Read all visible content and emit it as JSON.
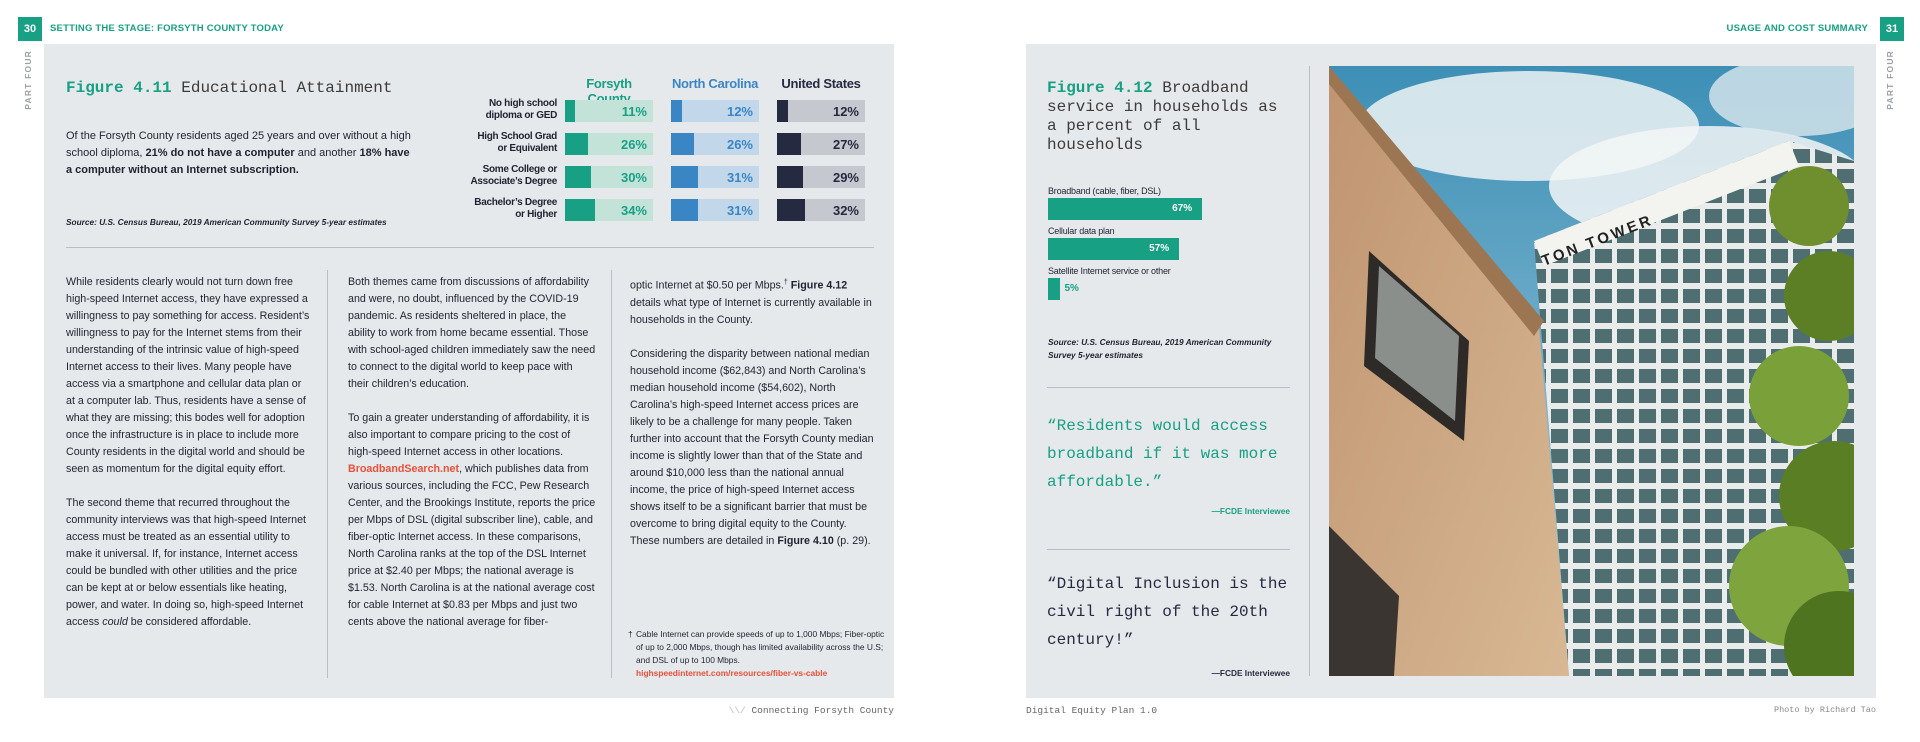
{
  "left_page": {
    "page_number": "30",
    "header": "SETTING THE STAGE: FORSYTH COUNTY TODAY",
    "side_label": "PART FOUR",
    "figure": {
      "number": "Figure 4.11",
      "title": "Educational Attainment",
      "description_parts": [
        "Of the Forsyth County residents aged 25 years and over without a high school diploma, ",
        "21% do not have a computer",
        " and another ",
        "18% have a computer without an Internet subscription."
      ],
      "source": "Source: U.S. Census Bureau, 2019 American Community Survey 5-year estimates"
    },
    "columns_text": {
      "c1": [
        "While residents clearly would not turn down free high-speed Internet access, they have expressed a willingness to pay something for access. Resident’s willingness to pay for the Internet stems from their understanding of the intrinsic value of high-speed Internet access to their lives. Many people have access via a smartphone and cellular data plan or at a computer lab. Thus, residents have a sense of what they are missing; this bodes well for adoption once the infrastructure is in place to include more County residents in the digital world and should be seen as momentum for the digital equity effort.",
        "The second theme that recurred throughout the community interviews was that high-speed Internet access must be treated as an essential utility to make it universal. If, for instance, Internet access could be bundled with other utilities and the price can be kept at or below essentials like heating, power, and water. In doing so, high-speed Internet access",
        "could",
        " be considered affordable."
      ],
      "c2": [
        "Both themes came from discussions of affordability and were, no doubt, influenced by the COVID-19 pandemic. As residents sheltered in place, the ability to work from home became essential. Those with school-aged children immediately saw the need to connect to the digital world to keep pace with their children’s education.",
        "To gain a greater understanding of affordability, it is also important to compare pricing to the cost of high-speed Internet access in other locations. ",
        "BroadbandSearch.net",
        ", which publishes data from various sources, including the FCC, Pew Research Center, and the Brookings Institute, reports the price per Mbps of DSL (digital subscriber line), cable, and fiber-optic Internet access. In these comparisons, North Carolina ranks at the top of the DSL Internet price at $2.40 per Mbps; the national average is $1.53. North Carolina is at the national average cost for cable Internet at $0.83 per Mbps and just two cents above the national average for fiber-"
      ],
      "c3": [
        "optic Internet at $0.50 per Mbps.",
        "†",
        " ",
        "Figure 4.12",
        " details what type of Internet is currently available in households in the County.",
        "Considering the disparity between national median household income ($62,843) and North Carolina’s median household income ($54,602), North Carolina’s high-speed Internet access prices are likely to be a challenge for many people. Taken further into account that the Forsyth County median income is slightly lower than that of the State and around $10,000 less than the national annual income, the price of high-speed Internet access shows itself to be a significant barrier that must be overcome to bring digital equity to the County. These numbers are detailed in ",
        "Figure 4.10",
        " (p. 29)."
      ],
      "footnote": {
        "mark": "†",
        "text": "Cable Internet can provide speeds of up to 1,000 Mbps; Fiber-optic of up to 2,000 Mbps, though has limited availability across the U.S; and DSL of up to 100 Mbps.",
        "link": "highspeedinternet.com/resources/fiber-vs-cable"
      }
    },
    "footer": "Connecting Forsyth County"
  },
  "right_page": {
    "page_number": "31",
    "header": "USAGE AND COST SUMMARY",
    "side_label": "PART FOUR",
    "figure": {
      "number": "Figure 4.12",
      "title": "Broadband service in households as a percent of all households",
      "source": "Source: U.S. Census Bureau, 2019 American Community Survey 5-year estimates"
    },
    "quotes": [
      {
        "text": "“Residents would access broadband if it was more affordable.”",
        "attribution": "—FCDE Interviewee"
      },
      {
        "text": "“Digital Inclusion is the civil right of the 20th century!”",
        "attribution": "—FCDE Interviewee"
      }
    ],
    "photo": {
      "sign_text": "TON TOWER"
    },
    "footer_left": "Digital Equity Plan 1.0",
    "footer_right": "Photo by Richard Tao"
  },
  "colors": {
    "accent": "#17a084",
    "nc": "#3a85c4",
    "us": "#262a40",
    "link": "#e8503a",
    "panel": "#e6e9ec"
  },
  "chart_data": [
    {
      "type": "bar",
      "title": "Educational Attainment",
      "categories": [
        "No high school diploma or GED",
        "High School Grad or Equivalent",
        "Some College or Associate’s Degree",
        "Bachelor’s Degree or Higher"
      ],
      "category_labels": [
        [
          "No high school",
          "diploma or GED"
        ],
        [
          "High School Grad",
          "or Equivalent"
        ],
        [
          "Some College or",
          "Associate’s Degree"
        ],
        [
          "Bachelor’s Degree",
          "or Higher"
        ]
      ],
      "series": [
        {
          "name": "Forsyth County",
          "values": [
            11,
            26,
            30,
            34
          ],
          "labels": [
            "11%",
            "26%",
            "30%",
            "34%"
          ],
          "color": "#17a084"
        },
        {
          "name": "North Carolina",
          "values": [
            12,
            26,
            31,
            31
          ],
          "labels": [
            "12%",
            "26%",
            "31%",
            "31%"
          ],
          "color": "#3a85c4"
        },
        {
          "name": "United States",
          "values": [
            12,
            27,
            29,
            32
          ],
          "labels": [
            "12%",
            "27%",
            "29%",
            "32%"
          ],
          "color": "#262a40"
        }
      ],
      "ylim": [
        0,
        100
      ]
    },
    {
      "type": "bar",
      "title": "Broadband service in households as a percent of all households",
      "categories": [
        "Broadband (cable, fiber, DSL)",
        "Cellular data plan",
        "Satellite Internet service or other"
      ],
      "values": [
        67,
        57,
        5
      ],
      "labels": [
        "67%",
        "57%",
        "5%"
      ],
      "color": "#17a084",
      "ylim": [
        0,
        100
      ]
    }
  ]
}
